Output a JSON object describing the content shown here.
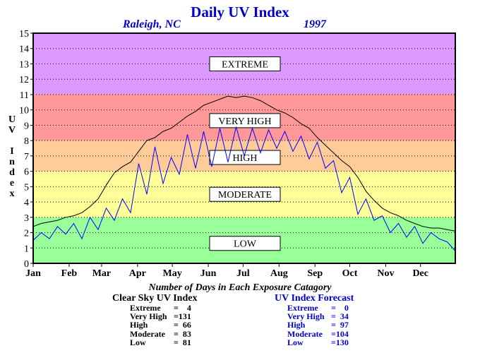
{
  "title": "Daily UV Index",
  "location": "Raleigh, NC",
  "year": "1997",
  "ylabel_letters": [
    "U",
    "V",
    "",
    "I",
    "n",
    "d",
    "e",
    "x"
  ],
  "chart_data": {
    "type": "line",
    "title": "Daily UV Index",
    "subtitle": "Raleigh, NC 1997",
    "ylabel": "UV Index",
    "xlabel": "",
    "ylim": [
      0,
      15
    ],
    "xlim": [
      1,
      365
    ],
    "yticks": [
      "0",
      "1",
      "2",
      "3",
      "4",
      "5",
      "6",
      "7",
      "8",
      "9",
      "10",
      "11",
      "12",
      "13",
      "14",
      "15"
    ],
    "xticks": [
      {
        "label": "Jan",
        "day": 1
      },
      {
        "label": "Feb",
        "day": 32
      },
      {
        "label": "Mar",
        "day": 60
      },
      {
        "label": "Apr",
        "day": 91
      },
      {
        "label": "May",
        "day": 121
      },
      {
        "label": "Jun",
        "day": 152
      },
      {
        "label": "Jul",
        "day": 182
      },
      {
        "label": "Aug",
        "day": 213
      },
      {
        "label": "Sep",
        "day": 244
      },
      {
        "label": "Oct",
        "day": 274
      },
      {
        "label": "Nov",
        "day": 305
      },
      {
        "label": "Dec",
        "day": 335
      }
    ],
    "grid": "horizontal dotted",
    "bands": [
      {
        "label": "LOW",
        "from": 0,
        "to": 3,
        "color": "#99ff99"
      },
      {
        "label": "MODERATE",
        "from": 3,
        "to": 6,
        "color": "#ffff99"
      },
      {
        "label": "HIGH",
        "from": 6,
        "to": 8,
        "color": "#ffcc99"
      },
      {
        "label": "VERY HIGH",
        "from": 8,
        "to": 11,
        "color": "#ff9999"
      },
      {
        "label": "EXTREME",
        "from": 11,
        "to": 15,
        "color": "#dd99ff"
      }
    ],
    "band_label_values": {
      "EXTREME": 13,
      "VERY HIGH": 9.3,
      "HIGH": 6.9,
      "MODERATE": 4.5,
      "LOW": 1.3
    },
    "series": [
      {
        "name": "Clear Sky UV Index",
        "color": "#000000",
        "x": [
          1,
          8,
          15,
          22,
          29,
          36,
          43,
          50,
          57,
          64,
          71,
          78,
          85,
          92,
          99,
          106,
          113,
          120,
          127,
          134,
          141,
          148,
          155,
          162,
          169,
          176,
          183,
          190,
          197,
          204,
          211,
          218,
          225,
          232,
          239,
          246,
          253,
          260,
          267,
          274,
          281,
          288,
          295,
          302,
          309,
          316,
          323,
          330,
          337,
          344,
          351,
          358,
          365
        ],
        "values": [
          2.4,
          2.6,
          2.7,
          2.8,
          3.0,
          3.1,
          3.3,
          3.7,
          4.2,
          5.1,
          5.9,
          6.3,
          6.6,
          7.3,
          8.0,
          8.2,
          8.6,
          8.8,
          9.2,
          9.6,
          9.9,
          10.3,
          10.5,
          10.7,
          10.9,
          10.8,
          10.9,
          10.8,
          10.6,
          10.3,
          10.0,
          9.8,
          9.5,
          9.1,
          8.8,
          8.2,
          7.7,
          7.2,
          6.7,
          6.3,
          5.6,
          4.7,
          4.1,
          3.6,
          3.3,
          3.1,
          2.8,
          2.6,
          2.4,
          2.3,
          2.3,
          2.2,
          2.1
        ]
      },
      {
        "name": "UV Index Forecast",
        "color": "#0000ff",
        "x": [
          1,
          8,
          15,
          22,
          29,
          36,
          43,
          50,
          57,
          64,
          71,
          78,
          85,
          92,
          99,
          106,
          113,
          120,
          127,
          134,
          141,
          148,
          155,
          162,
          169,
          176,
          183,
          190,
          197,
          204,
          211,
          218,
          225,
          232,
          239,
          246,
          253,
          260,
          267,
          274,
          281,
          288,
          295,
          302,
          309,
          316,
          323,
          330,
          337,
          344,
          351,
          358,
          365
        ],
        "values": [
          1.5,
          2.0,
          1.6,
          2.4,
          1.9,
          2.6,
          1.6,
          3.0,
          2.2,
          3.6,
          2.8,
          4.2,
          3.3,
          6.5,
          4.5,
          7.6,
          5.2,
          6.9,
          5.8,
          8.4,
          6.2,
          8.6,
          6.3,
          8.8,
          6.6,
          8.9,
          7.0,
          8.8,
          7.2,
          8.7,
          7.5,
          8.6,
          7.3,
          8.3,
          6.8,
          7.9,
          6.2,
          6.7,
          4.6,
          5.6,
          3.2,
          4.2,
          2.8,
          3.1,
          2.0,
          2.6,
          1.7,
          2.4,
          1.3,
          2.0,
          1.6,
          1.4,
          0.8
        ]
      }
    ]
  },
  "stats": {
    "heading": "Number of Days in Each Exposure Catagory",
    "clear_sky": {
      "title": "Clear Sky UV Index",
      "rows": [
        {
          "category": "Extreme",
          "value": "=    4"
        },
        {
          "category": "Very High",
          "value": "=131"
        },
        {
          "category": "High",
          "value": "=  66"
        },
        {
          "category": "Moderate",
          "value": "=  83"
        },
        {
          "category": "Low",
          "value": "=  81"
        }
      ]
    },
    "forecast": {
      "title": "UV Index Forecast",
      "rows": [
        {
          "category": "Extreme",
          "value": "=    0"
        },
        {
          "category": "Very High",
          "value": "=  34"
        },
        {
          "category": "High",
          "value": "=  97"
        },
        {
          "category": "Moderate",
          "value": "=104"
        },
        {
          "category": "Low",
          "value": "=130"
        }
      ]
    }
  }
}
